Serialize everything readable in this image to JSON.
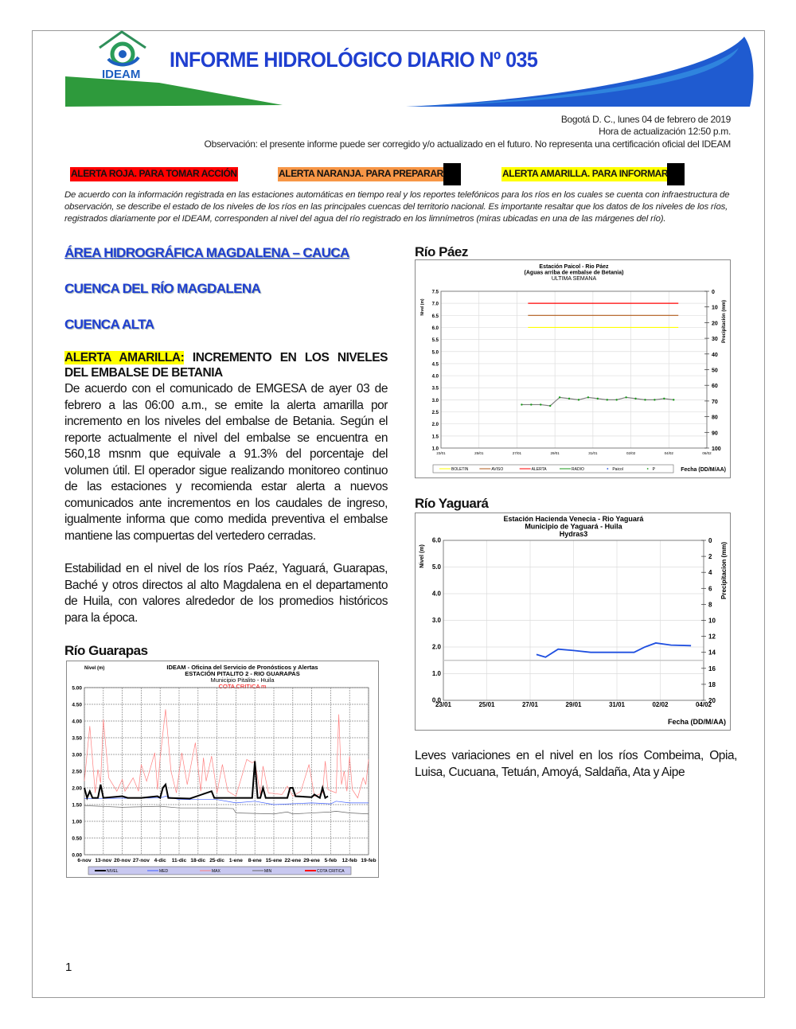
{
  "header": {
    "title": "INFORME HIDROLÓGICO DIARIO Nº 035",
    "logo_text": "IDEAM"
  },
  "meta": {
    "date": "Bogotá D. C., lunes 04 de febrero de 2019",
    "update": "Hora de actualización 12:50 p.m.",
    "note": "Observación: el presente informe puede ser corregido y/o actualizado en el futuro. No representa una certificación oficial del IDEAM"
  },
  "alerts": [
    {
      "label": "ALERTA ROJA. PARA TOMAR ACCIÓN",
      "color": "#ff0000"
    },
    {
      "label": "ALERTA NARANJA. PARA PREPARARSE",
      "color": "#f79646"
    },
    {
      "label": "ALERTA AMARILLA. PARA INFORMARSE",
      "color": "#ffff00"
    }
  ],
  "intro": "De acuerdo con la información registrada en las estaciones automáticas en tiempo real y los reportes telefónicos para los ríos en los cuales se cuenta con infraestructura de observación, se describe el estado de los niveles de los ríos en las principales cuencas del territorio nacional. Es importante resaltar que los datos de los niveles de los ríos, registrados diariamente por el IDEAM, corresponden al nivel del agua del río registrado en los limnímetros (miras ubicadas en una de las márgenes del río).",
  "left": {
    "area": "ÁREA HIDROGRÁFICA MAGDALENA – CAUCA",
    "cuenca": "CUENCA DEL RÍO MAGDALENA",
    "subcuenca": "CUENCA ALTA",
    "alert_tag": "ALERTA AMARILLA:",
    "alert_title": " INCREMENTO EN LOS NIVELES DEL EMBALSE DE BETANIA",
    "p1": "De acuerdo con el comunicado de EMGESA de ayer 03 de febrero a las 06:00 a.m., se emite la alerta amarilla por incremento en los niveles del embalse de Betania. Según el reporte actualmente el nivel del embalse se encuentra en 560,18 msnm que equivale a 91.3% del porcentaje del volumen útil. El operador sigue realizando monitoreo continuo de las estaciones y recomienda estar alerta a nuevos comunicados ante incrementos en los caudales de ingreso, igualmente informa que como medida preventiva el embalse mantiene las compuertas del vertedero cerradas.",
    "p2": "Estabilidad en el nivel de los ríos Paéz, Yaguará, Guarapas, Baché y otros directos al alto Magdalena en el departamento de Huila, con valores alrededor de los promedios históricos para la época.",
    "river3": "Río Guarapas"
  },
  "right": {
    "river1": "Río Páez",
    "river2": "Río Yaguará",
    "p3": "Leves variaciones en el nivel en los ríos Combeima, Opia, Luisa, Cucuana, Tetuán, Amoyá, Saldaña, Ata y Aipe"
  },
  "page_number": "1",
  "chart_data": [
    {
      "id": "paez",
      "type": "line",
      "title": [
        "Estación Paicol  - Rio Páez",
        "(Aguas arriba de embalse de Betania)",
        "ULTIMA SEMANA"
      ],
      "ylabel": "Nivel  (m)",
      "y2label": "Precipitación (mm)",
      "xlabel": "Fecha  (DD/M/AA)",
      "ylim": [
        1.0,
        7.5
      ],
      "yticks": [
        1.0,
        1.5,
        2.0,
        2.5,
        3.0,
        3.5,
        4.0,
        4.5,
        5.0,
        5.5,
        6.0,
        6.5,
        7.0,
        7.5
      ],
      "y2lim": [
        0,
        100
      ],
      "y2ticks": [
        0,
        10,
        20,
        30,
        40,
        50,
        60,
        70,
        80,
        90,
        100
      ],
      "y2_inverted": true,
      "xlim": [
        "2019-01-23",
        "2019-02-06"
      ],
      "xticks": [
        "2019-01-23",
        "2019-01-25",
        "2019-01-27",
        "2019-01-29",
        "2019-01-31",
        "2019-02-02",
        "2019-02-04",
        "2019-02-06"
      ],
      "xticklabels": [
        "23/01",
        "25/01",
        "27/01",
        "29/01",
        "31/01",
        "02/02",
        "04/02",
        "06/02"
      ],
      "grid": true,
      "legend_placement": "bottom",
      "legend": [
        "BOLETIN",
        "AVISO",
        "ALERTA",
        "RADIO",
        "Paicol",
        "P"
      ],
      "thresholds": [
        {
          "name": "BOLETIN",
          "value": 6.0,
          "color": "#ffff00"
        },
        {
          "name": "AVISO",
          "value": 6.5,
          "color": "#b05a1a"
        },
        {
          "name": "ALERTA",
          "value": 7.0,
          "color": "#ff0000"
        }
      ],
      "threshold_range": [
        "2019-01-27T14:00",
        "2019-02-04T12:00"
      ],
      "series": [
        {
          "name": "RADIO",
          "color": "#808080",
          "marker_color": "#1a9a1a",
          "x": [
            "2019-01-27T06:00",
            "2019-01-27T18:00",
            "2019-01-28T06:00",
            "2019-01-28T18:00",
            "2019-01-29T06:00",
            "2019-01-29T18:00",
            "2019-01-30T06:00",
            "2019-01-30T18:00",
            "2019-01-31T06:00",
            "2019-01-31T18:00",
            "2019-02-01T06:00",
            "2019-02-01T18:00",
            "2019-02-02T06:00",
            "2019-02-02T18:00",
            "2019-02-03T06:00",
            "2019-02-03T18:00",
            "2019-02-04T06:00"
          ],
          "values": [
            2.8,
            2.8,
            2.8,
            2.75,
            3.1,
            3.05,
            3.0,
            3.1,
            3.05,
            3.0,
            3.0,
            3.1,
            3.05,
            3.0,
            3.0,
            3.05,
            3.0
          ]
        }
      ]
    },
    {
      "id": "yaguara",
      "type": "line",
      "title": [
        "Estación Hacienda Venecia - Rio  Yaguará",
        "Municipio de Yaguará - Huila",
        "Hydras3"
      ],
      "ylabel": "Nivel (m)",
      "y2label": "Precipitacion (mm)",
      "xlabel": "Fecha (DD/M/AA)",
      "ylim": [
        0,
        6
      ],
      "yticks": [
        0.0,
        1.0,
        2.0,
        3.0,
        4.0,
        5.0,
        6.0
      ],
      "y2lim": [
        0,
        20
      ],
      "y2ticks": [
        0,
        2,
        4,
        6,
        8,
        10,
        12,
        14,
        16,
        18,
        20
      ],
      "y2_inverted": true,
      "xlim": [
        "2019-01-23",
        "2019-02-04"
      ],
      "xticks": [
        "2019-01-23",
        "2019-01-25",
        "2019-01-27",
        "2019-01-29",
        "2019-01-31",
        "2019-02-02",
        "2019-02-04"
      ],
      "xticklabels": [
        "23/01",
        "25/01",
        "27/01",
        "29/01",
        "31/01",
        "02/02",
        "04/02"
      ],
      "grid": true,
      "reference_lines": [
        {
          "value": 1.5,
          "color": "#c8c8c8"
        }
      ],
      "series": [
        {
          "color": "#1f4fe0",
          "x": [
            "2019-01-27T07:00",
            "2019-01-27T17:00",
            "2019-01-28T07:00",
            "2019-01-29T00:00",
            "2019-01-29T19:00",
            "2019-01-31T00:00",
            "2019-01-31T19:00",
            "2019-02-01T07:00",
            "2019-02-01T19:00",
            "2019-02-02T12:00",
            "2019-02-03T10:00"
          ],
          "values": [
            1.72,
            1.62,
            1.92,
            1.87,
            1.8,
            1.8,
            1.8,
            2.0,
            2.15,
            2.07,
            2.05
          ]
        }
      ]
    },
    {
      "id": "guarapas",
      "type": "line",
      "title": [
        "IDEAM - Oficina del Servicio de Pronósticos y Alertas",
        "ESTACIÓN  PITALITO 2 - RIO GUARAPAS",
        "Municipio Pitalito - Huila",
        "COTA  CRITICA       m"
      ],
      "ylabel": "Nivel (m)",
      "ylim": [
        0,
        5
      ],
      "yticks": [
        0.0,
        0.5,
        1.0,
        1.5,
        2.0,
        2.5,
        3.0,
        3.5,
        4.0,
        4.5,
        5.0
      ],
      "xlim": [
        "2018-11-06",
        "2019-02-19"
      ],
      "xticks": [
        "2018-11-06",
        "2018-11-13",
        "2018-11-20",
        "2018-11-27",
        "2018-12-04",
        "2018-12-11",
        "2018-12-18",
        "2018-12-25",
        "2019-01-01",
        "2019-01-08",
        "2019-01-15",
        "2019-01-22",
        "2019-01-29",
        "2019-02-05",
        "2019-02-12",
        "2019-02-19"
      ],
      "xticklabels": [
        "6-nov",
        "13-nov",
        "20-nov",
        "27-nov",
        "4-dic",
        "11-dic",
        "18-dic",
        "25-dic",
        "1-ene",
        "8-ene",
        "15-ene",
        "22-ene",
        "29-ene",
        "5-feb",
        "12-feb",
        "19-feb"
      ],
      "grid": true,
      "legend_placement": "bottom",
      "legend": [
        "NIVEL",
        "MED",
        "MAX",
        "MIN",
        "COTA CRITICA"
      ],
      "series": [
        {
          "name": "MAX",
          "color": "#ff8080",
          "points": [
            [
              "2018-11-06",
              2.2
            ],
            [
              "2018-11-08",
              3.85
            ],
            [
              "2018-11-10",
              1.85
            ],
            [
              "2018-11-11",
              2.55
            ],
            [
              "2018-11-12",
              2.15
            ],
            [
              "2018-11-13",
              4.05
            ],
            [
              "2018-11-15",
              2.3
            ],
            [
              "2018-11-18",
              1.9
            ],
            [
              "2018-11-20",
              2.25
            ],
            [
              "2018-11-21",
              1.9
            ],
            [
              "2018-11-24",
              2.3
            ],
            [
              "2018-11-26",
              1.9
            ],
            [
              "2018-11-27",
              2.7
            ],
            [
              "2018-11-29",
              2.2
            ],
            [
              "2018-12-02",
              3.05
            ],
            [
              "2018-12-03",
              1.95
            ],
            [
              "2018-12-04",
              2.9
            ],
            [
              "2018-12-06",
              4.35
            ],
            [
              "2018-12-08",
              2.5
            ],
            [
              "2018-12-10",
              1.85
            ],
            [
              "2018-12-12",
              3.05
            ],
            [
              "2018-12-14",
              2.1
            ],
            [
              "2018-12-17",
              3.35
            ],
            [
              "2018-12-19",
              1.9
            ],
            [
              "2018-12-20",
              2.9
            ],
            [
              "2018-12-21",
              2.2
            ],
            [
              "2018-12-23",
              2.95
            ],
            [
              "2018-12-25",
              1.85
            ],
            [
              "2018-12-27",
              2.7
            ],
            [
              "2018-12-29",
              1.9
            ],
            [
              "2019-01-01",
              1.75
            ],
            [
              "2019-01-05",
              2.85
            ],
            [
              "2019-01-07",
              2.75
            ],
            [
              "2019-01-08",
              2.8
            ],
            [
              "2019-01-10",
              1.8
            ],
            [
              "2019-01-11",
              2.65
            ],
            [
              "2019-01-13",
              1.85
            ],
            [
              "2019-01-18",
              1.8
            ],
            [
              "2019-01-20",
              2.05
            ],
            [
              "2019-01-22",
              1.75
            ],
            [
              "2019-01-25",
              1.9
            ],
            [
              "2019-01-28",
              2.7
            ],
            [
              "2019-01-30",
              1.75
            ],
            [
              "2019-02-02",
              1.85
            ],
            [
              "2019-02-03",
              2.8
            ],
            [
              "2019-02-04",
              1.95
            ],
            [
              "2019-02-07",
              1.85
            ],
            [
              "2019-02-08",
              4.2
            ],
            [
              "2019-02-09",
              2.1
            ],
            [
              "2019-02-10",
              2.5
            ],
            [
              "2019-02-11",
              1.9
            ],
            [
              "2019-02-12",
              2.95
            ],
            [
              "2019-02-13",
              1.95
            ],
            [
              "2019-02-15",
              1.7
            ],
            [
              "2019-02-17",
              2.3
            ],
            [
              "2019-02-18",
              2.1
            ],
            [
              "2019-02-19",
              2.85
            ]
          ]
        },
        {
          "name": "MIN",
          "color": "#666666",
          "points": [
            [
              "2018-11-06",
              1.47
            ],
            [
              "2018-11-20",
              1.42
            ],
            [
              "2018-12-04",
              1.45
            ],
            [
              "2018-12-11",
              1.4
            ],
            [
              "2018-12-25",
              1.4
            ],
            [
              "2018-12-31",
              1.38
            ],
            [
              "2019-01-01",
              1.25
            ],
            [
              "2019-01-15",
              1.22
            ],
            [
              "2019-01-20",
              1.28
            ],
            [
              "2019-01-22",
              1.22
            ],
            [
              "2019-02-05",
              1.28
            ],
            [
              "2019-02-07",
              1.3
            ],
            [
              "2019-02-12",
              1.25
            ],
            [
              "2019-02-19",
              1.22
            ]
          ]
        },
        {
          "name": "MED",
          "color": "#4060ff",
          "points": [
            [
              "2018-11-06",
              1.68
            ],
            [
              "2018-12-04",
              1.7
            ],
            [
              "2018-12-06",
              1.75
            ],
            [
              "2018-12-11",
              1.65
            ],
            [
              "2018-12-25",
              1.65
            ],
            [
              "2019-01-01",
              1.55
            ],
            [
              "2019-01-08",
              1.6
            ],
            [
              "2019-01-15",
              1.5
            ],
            [
              "2019-01-29",
              1.55
            ],
            [
              "2019-02-05",
              1.52
            ],
            [
              "2019-02-07",
              1.6
            ],
            [
              "2019-02-12",
              1.55
            ],
            [
              "2019-02-19",
              1.55
            ]
          ]
        },
        {
          "name": "NIVEL",
          "color": "#000000",
          "points": [
            [
              "2018-11-06",
              2.0
            ],
            [
              "2018-11-07",
              1.7
            ],
            [
              "2018-11-08",
              1.9
            ],
            [
              "2018-11-09",
              1.7
            ],
            [
              "2018-11-11",
              1.7
            ],
            [
              "2018-11-12",
              2.1
            ],
            [
              "2018-11-13",
              1.7
            ],
            [
              "2018-11-20",
              1.75
            ],
            [
              "2018-11-22",
              1.7
            ],
            [
              "2018-11-27",
              1.7
            ],
            [
              "2018-12-03",
              1.75
            ],
            [
              "2018-12-04",
              1.7
            ],
            [
              "2018-12-05",
              2.0
            ],
            [
              "2018-12-06",
              2.1
            ],
            [
              "2018-12-07",
              1.7
            ],
            [
              "2018-12-15",
              1.68
            ],
            [
              "2018-12-23",
              1.9
            ],
            [
              "2018-12-24",
              1.7
            ],
            [
              "2019-01-07",
              1.7
            ],
            [
              "2019-01-08",
              2.8
            ],
            [
              "2019-01-09",
              1.7
            ],
            [
              "2019-01-10",
              1.7
            ],
            [
              "2019-01-11",
              2.0
            ],
            [
              "2019-01-12",
              1.7
            ],
            [
              "2019-01-20",
              1.7
            ],
            [
              "2019-01-21",
              2.0
            ],
            [
              "2019-01-22",
              2.0
            ],
            [
              "2019-01-23",
              1.75
            ],
            [
              "2019-01-29",
              1.72
            ],
            [
              "2019-01-30",
              1.8
            ],
            [
              "2019-02-01",
              1.7
            ],
            [
              "2019-02-02",
              2.0
            ],
            [
              "2019-02-03",
              1.7
            ],
            [
              "2019-02-04",
              1.75
            ]
          ]
        }
      ]
    }
  ]
}
